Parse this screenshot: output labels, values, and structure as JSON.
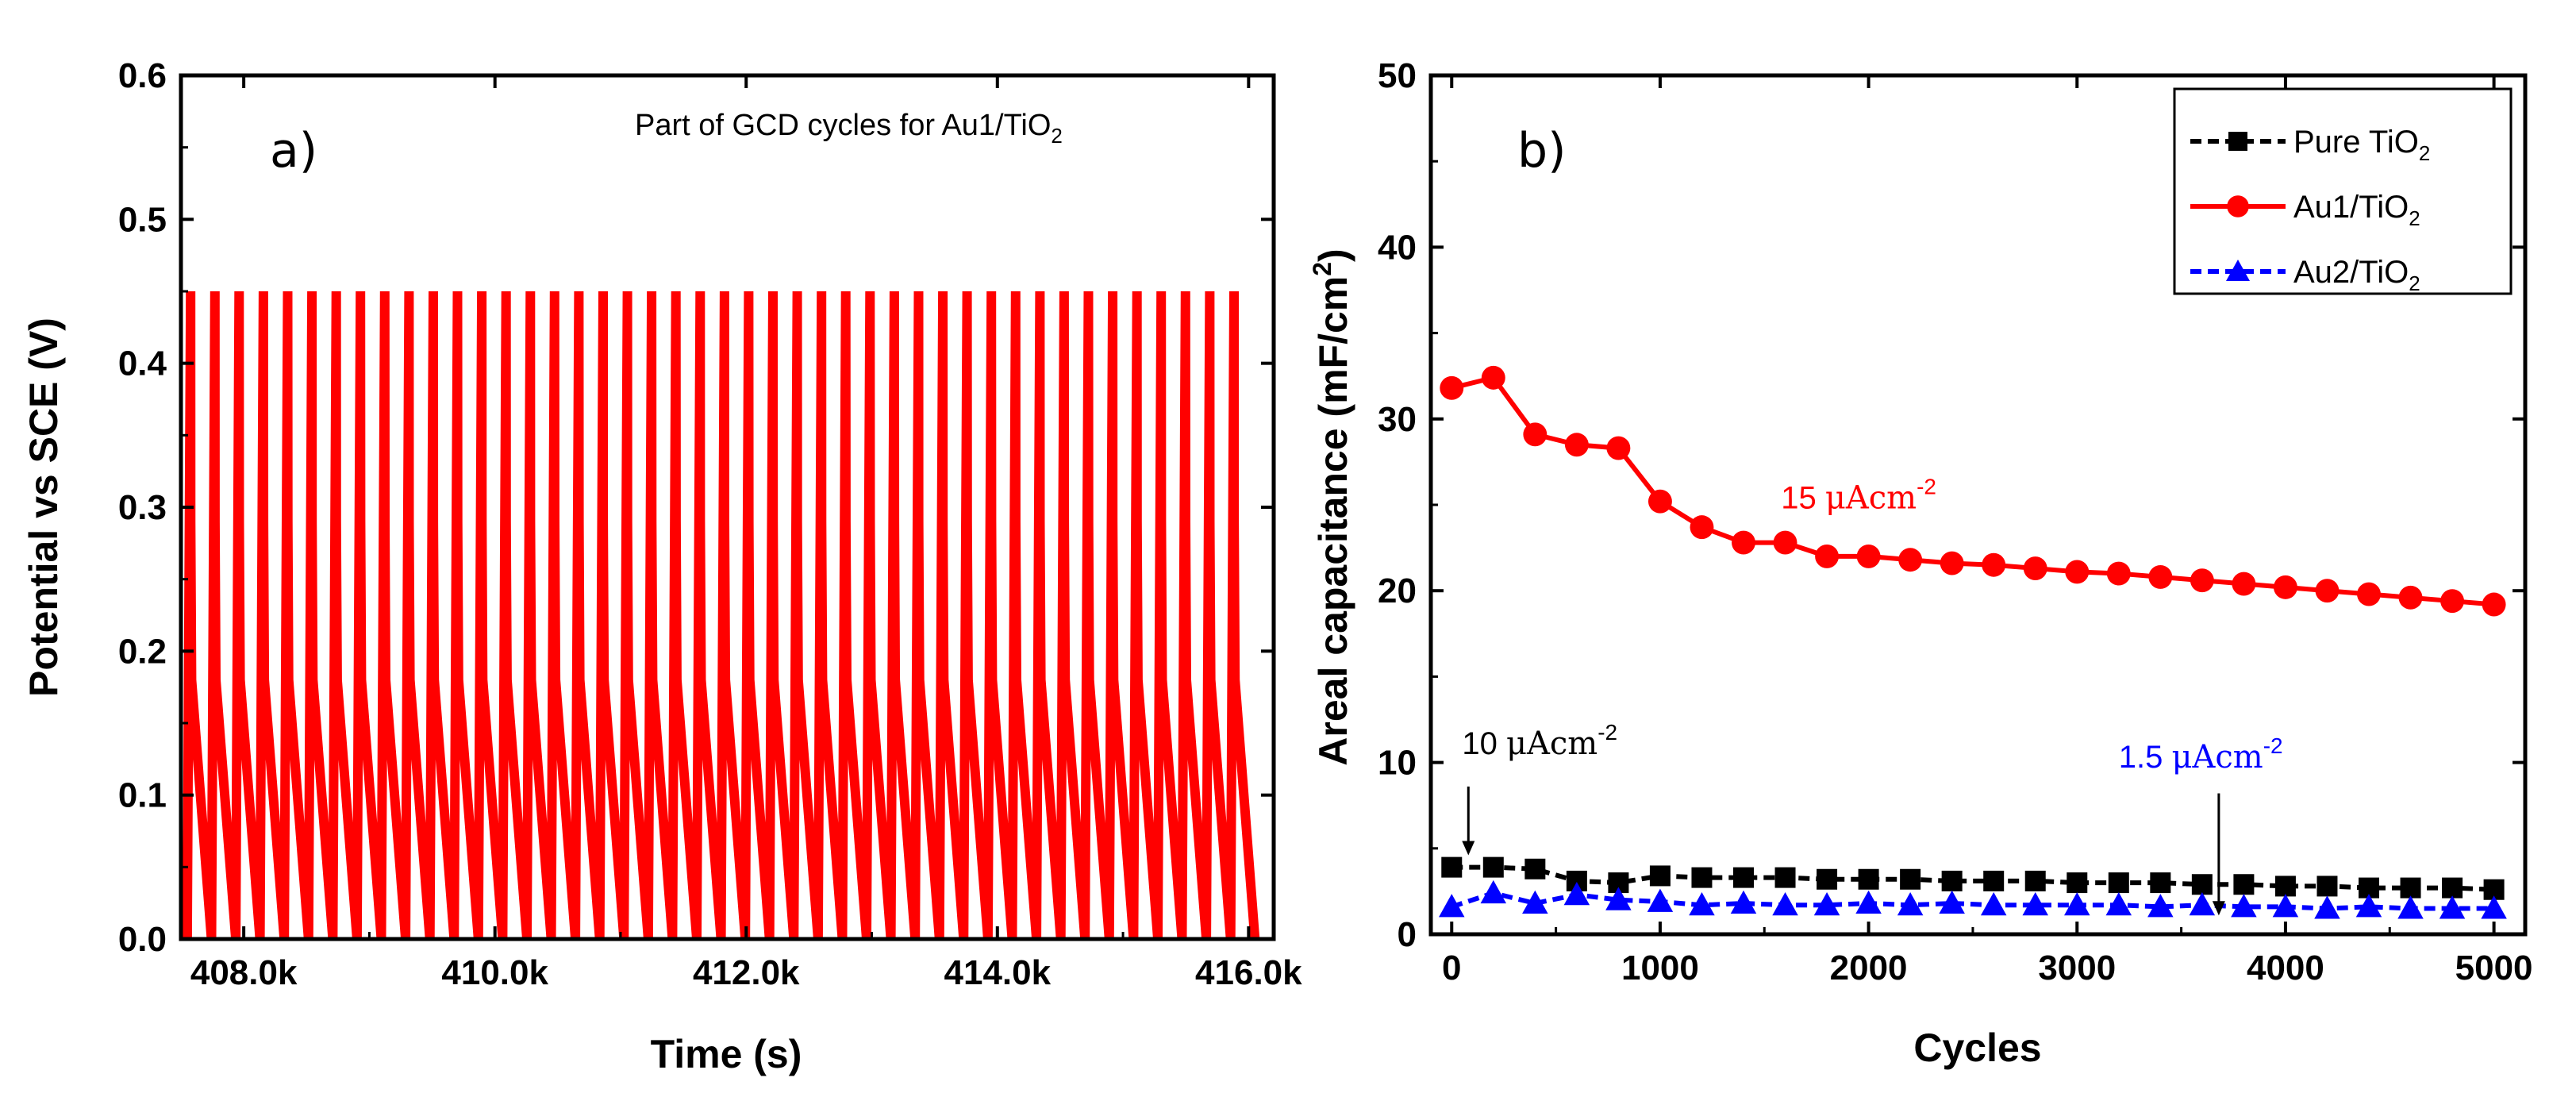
{
  "chart_data": [
    {
      "panel": "a)",
      "type": "line",
      "title": "Part of GCD cycles for Au1/TiO",
      "title_subscript": "2",
      "xlabel": "Time (s)",
      "ylabel": "Potential vs SCE (V)",
      "xlim": [
        407500,
        416200
      ],
      "ylim": [
        0.0,
        0.6
      ],
      "xticks": [
        408000,
        410000,
        412000,
        414000,
        416000
      ],
      "xtick_labels": [
        "408.0k",
        "410.0k",
        "412.0k",
        "414.0k",
        "416.0k"
      ],
      "yticks": [
        0.0,
        0.1,
        0.2,
        0.3,
        0.4,
        0.5,
        0.6
      ],
      "ytick_labels": [
        "0.0",
        "0.1",
        "0.2",
        "0.3",
        "0.4",
        "0.5",
        "0.6"
      ],
      "series": [
        {
          "name": "Au1/TiO2 GCD",
          "color": "#ff0000",
          "v_min": 0.0,
          "v_max": 0.45,
          "ir_drop_low": 0.18,
          "ir_drop_high": 0.29,
          "t_start": 407550,
          "t_end": 416050,
          "cycles": 44
        }
      ]
    },
    {
      "panel": "b)",
      "type": "line",
      "xlabel": "Cycles",
      "ylabel": "Areal capacitance  (mF/cm",
      "ylabel_sup": "2",
      "xlim": [
        -100,
        5150
      ],
      "ylim": [
        0,
        50
      ],
      "xticks": [
        0,
        1000,
        2000,
        3000,
        4000,
        5000
      ],
      "xtick_labels": [
        "0",
        "1000",
        "2000",
        "3000",
        "4000",
        "5000"
      ],
      "yticks": [
        0,
        10,
        20,
        30,
        40,
        50
      ],
      "ytick_labels": [
        "0",
        "10",
        "20",
        "30",
        "40",
        "50"
      ],
      "legend_position": "top-right",
      "x": [
        0,
        200,
        400,
        600,
        800,
        1000,
        1200,
        1400,
        1600,
        1800,
        2000,
        2200,
        2400,
        2600,
        2800,
        3000,
        3200,
        3400,
        3600,
        3800,
        4000,
        4200,
        4400,
        4600,
        4800,
        5000
      ],
      "series": [
        {
          "name": "Pure TiO",
          "name_sub": "2",
          "color": "#000000",
          "marker": "square",
          "values": [
            3.9,
            3.9,
            3.8,
            3.1,
            3.0,
            3.4,
            3.3,
            3.3,
            3.3,
            3.2,
            3.2,
            3.2,
            3.1,
            3.1,
            3.1,
            3.0,
            3.0,
            3.0,
            2.9,
            2.9,
            2.8,
            2.8,
            2.7,
            2.7,
            2.7,
            2.6
          ]
        },
        {
          "name": "Au1/TiO",
          "name_sub": "2",
          "color": "#ff0000",
          "marker": "circle",
          "values": [
            31.8,
            32.4,
            29.1,
            28.5,
            28.3,
            25.2,
            23.7,
            22.8,
            22.8,
            22.0,
            22.0,
            21.8,
            21.6,
            21.5,
            21.3,
            21.1,
            21.0,
            20.8,
            20.6,
            20.4,
            20.2,
            20.0,
            19.8,
            19.6,
            19.4,
            19.2
          ]
        },
        {
          "name": "Au2/TiO",
          "name_sub": "2",
          "color": "#0000ff",
          "marker": "triangle",
          "values": [
            1.6,
            2.4,
            1.8,
            2.3,
            2.0,
            1.9,
            1.7,
            1.8,
            1.7,
            1.7,
            1.8,
            1.7,
            1.8,
            1.7,
            1.7,
            1.7,
            1.7,
            1.6,
            1.7,
            1.6,
            1.6,
            1.5,
            1.6,
            1.5,
            1.5,
            1.5
          ]
        }
      ],
      "annotations": [
        {
          "id": "ann_red",
          "number": "15 ",
          "unit": "μAcm",
          "sup": "-2",
          "color": "#ff0000",
          "x": 1580,
          "y": 24.8
        },
        {
          "id": "ann_black",
          "number": "10 ",
          "unit": "μAcm",
          "sup": "-2",
          "color": "#000000",
          "x": 50,
          "y": 10.5,
          "arrow_from_y": 8.6,
          "arrow_to_y": 4.6,
          "arrow_x": 80
        },
        {
          "id": "ann_blue",
          "number": "1.5 ",
          "unit": "μAcm",
          "sup": "-2",
          "color": "#0000ff",
          "x": 3200,
          "y": 9.7,
          "arrow_from_y": 8.2,
          "arrow_to_y": 1.1,
          "arrow_x": 3680
        }
      ]
    }
  ]
}
